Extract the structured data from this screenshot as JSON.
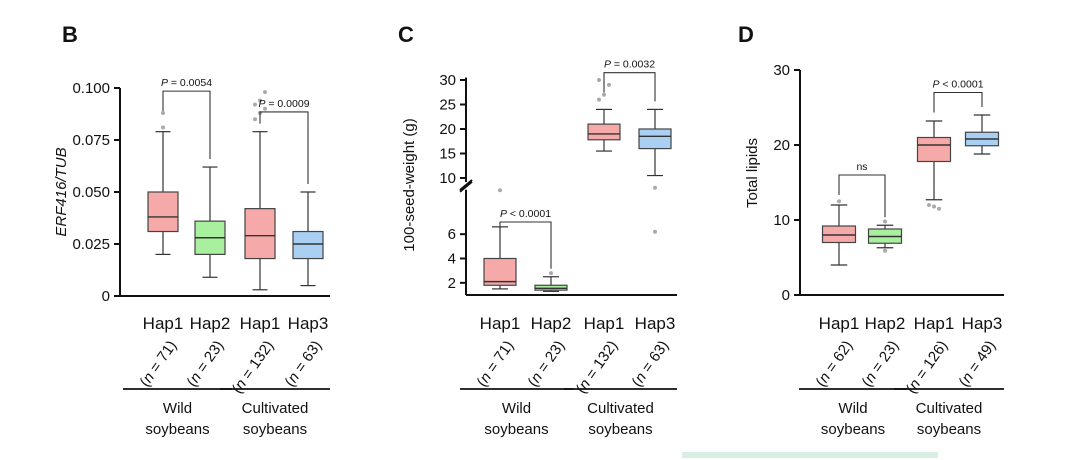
{
  "chart_data": [
    {
      "type": "box",
      "panel": "B",
      "ylabel": "ERF416/TUB",
      "ylim": [
        0,
        0.1
      ],
      "yticks": [
        "0",
        "0.025",
        "0.050",
        "0.075",
        "0.100"
      ],
      "categories": [
        "Hap1",
        "Hap2",
        "Hap1",
        "Hap3"
      ],
      "n_labels": [
        "(n = 71)",
        "(n = 23)",
        "(n = 132)",
        "(n = 63)"
      ],
      "colors": [
        "#f6a9a9",
        "#a8ef9e",
        "#f6a9a9",
        "#a9cff2"
      ],
      "boxes": [
        {
          "min": 0.02,
          "q1": 0.031,
          "median": 0.038,
          "q3": 0.05,
          "max": 0.079,
          "outliers": [
            0.081,
            0.088
          ]
        },
        {
          "min": 0.009,
          "q1": 0.02,
          "median": 0.028,
          "q3": 0.036,
          "max": 0.062,
          "outliers": []
        },
        {
          "min": 0.003,
          "q1": 0.018,
          "median": 0.029,
          "q3": 0.042,
          "max": 0.079,
          "outliers": [
            0.085,
            0.088,
            0.09,
            0.092,
            0.094,
            0.098
          ]
        },
        {
          "min": 0.005,
          "q1": 0.018,
          "median": 0.025,
          "q3": 0.031,
          "max": 0.05,
          "outliers": []
        }
      ],
      "comparisons": [
        {
          "a": 0,
          "b": 1,
          "label": "P = 0.0054",
          "y": 0.0985
        },
        {
          "a": 2,
          "b": 3,
          "label": "P = 0.0009",
          "y": 0.0885
        }
      ],
      "groups": [
        {
          "label_lines": [
            "Wild",
            "soybeans"
          ],
          "from": 0,
          "to": 1
        },
        {
          "label_lines": [
            "Cultivated",
            "soybeans"
          ],
          "from": 2,
          "to": 3
        }
      ]
    },
    {
      "type": "box",
      "panel": "C",
      "ylabel": "100-seed-weight (g)",
      "axis_break": true,
      "lower_ylim": [
        1,
        8
      ],
      "upper_ylim": [
        10,
        31
      ],
      "lower_yticks": [
        "2",
        "4",
        "6"
      ],
      "upper_yticks": [
        "10",
        "15",
        "20",
        "25",
        "30"
      ],
      "categories": [
        "Hap1",
        "Hap2",
        "Hap1",
        "Hap3"
      ],
      "n_labels": [
        "(n = 71)",
        "(n = 23)",
        "(n = 132)",
        "(n = 63)"
      ],
      "colors": [
        "#f6a9a9",
        "#a8ef9e",
        "#f6a9a9",
        "#a9cff2"
      ],
      "boxes": [
        {
          "min": 1.5,
          "q1": 1.8,
          "median": 2.1,
          "q3": 4.0,
          "max": 6.6,
          "outliers": [
            7.5
          ]
        },
        {
          "min": 1.3,
          "q1": 1.4,
          "median": 1.55,
          "q3": 1.8,
          "max": 2.5,
          "outliers": [
            2.8
          ]
        },
        {
          "min": 15.5,
          "q1": 17.8,
          "median": 19.0,
          "q3": 21.0,
          "max": 24.0,
          "outliers": [
            26.0,
            27.0,
            29.0,
            30.0
          ]
        },
        {
          "min": 10.5,
          "q1": 16.0,
          "median": 18.5,
          "q3": 20.0,
          "max": 24.0,
          "outliers": [
            8.0,
            6.2
          ]
        }
      ],
      "comparisons": [
        {
          "a": 0,
          "b": 1,
          "label": "P < 0.0001",
          "y": 7.0
        },
        {
          "a": 2,
          "b": 3,
          "label": "P = 0.0032",
          "y": 31.5
        }
      ],
      "groups": [
        {
          "label_lines": [
            "Wild",
            "soybeans"
          ],
          "from": 0,
          "to": 1
        },
        {
          "label_lines": [
            "Cultivated",
            "soybeans"
          ],
          "from": 2,
          "to": 3
        }
      ]
    },
    {
      "type": "box",
      "panel": "D",
      "ylabel": "Total lipids",
      "ylim": [
        0,
        30
      ],
      "yticks": [
        "0",
        "10",
        "20",
        "30"
      ],
      "categories": [
        "Hap1",
        "Hap2",
        "Hap1",
        "Hap3"
      ],
      "n_labels": [
        "(n = 62)",
        "(n = 23)",
        "(n = 126)",
        "(n = 49)"
      ],
      "colors": [
        "#f6a9a9",
        "#a8ef9e",
        "#f6a9a9",
        "#a9cff2"
      ],
      "boxes": [
        {
          "min": 4.0,
          "q1": 7.0,
          "median": 8.0,
          "q3": 9.2,
          "max": 12.0,
          "outliers": [
            12.5
          ]
        },
        {
          "min": 6.3,
          "q1": 6.9,
          "median": 7.8,
          "q3": 8.8,
          "max": 9.3,
          "outliers": [
            5.9,
            9.8
          ]
        },
        {
          "min": 12.7,
          "q1": 17.8,
          "median": 20.0,
          "q3": 21.0,
          "max": 23.2,
          "outliers": [
            12.0,
            11.8,
            11.5
          ]
        },
        {
          "min": 18.8,
          "q1": 19.9,
          "median": 20.8,
          "q3": 21.7,
          "max": 24.0,
          "outliers": []
        }
      ],
      "comparisons": [
        {
          "a": 0,
          "b": 1,
          "label": "ns",
          "y": 16.0
        },
        {
          "a": 2,
          "b": 3,
          "label": "P < 0.0001",
          "y": 27.0
        }
      ],
      "groups": [
        {
          "label_lines": [
            "Wild",
            "soybeans"
          ],
          "from": 0,
          "to": 1
        },
        {
          "label_lines": [
            "Cultivated",
            "soybeans"
          ],
          "from": 2,
          "to": 3
        }
      ]
    }
  ]
}
